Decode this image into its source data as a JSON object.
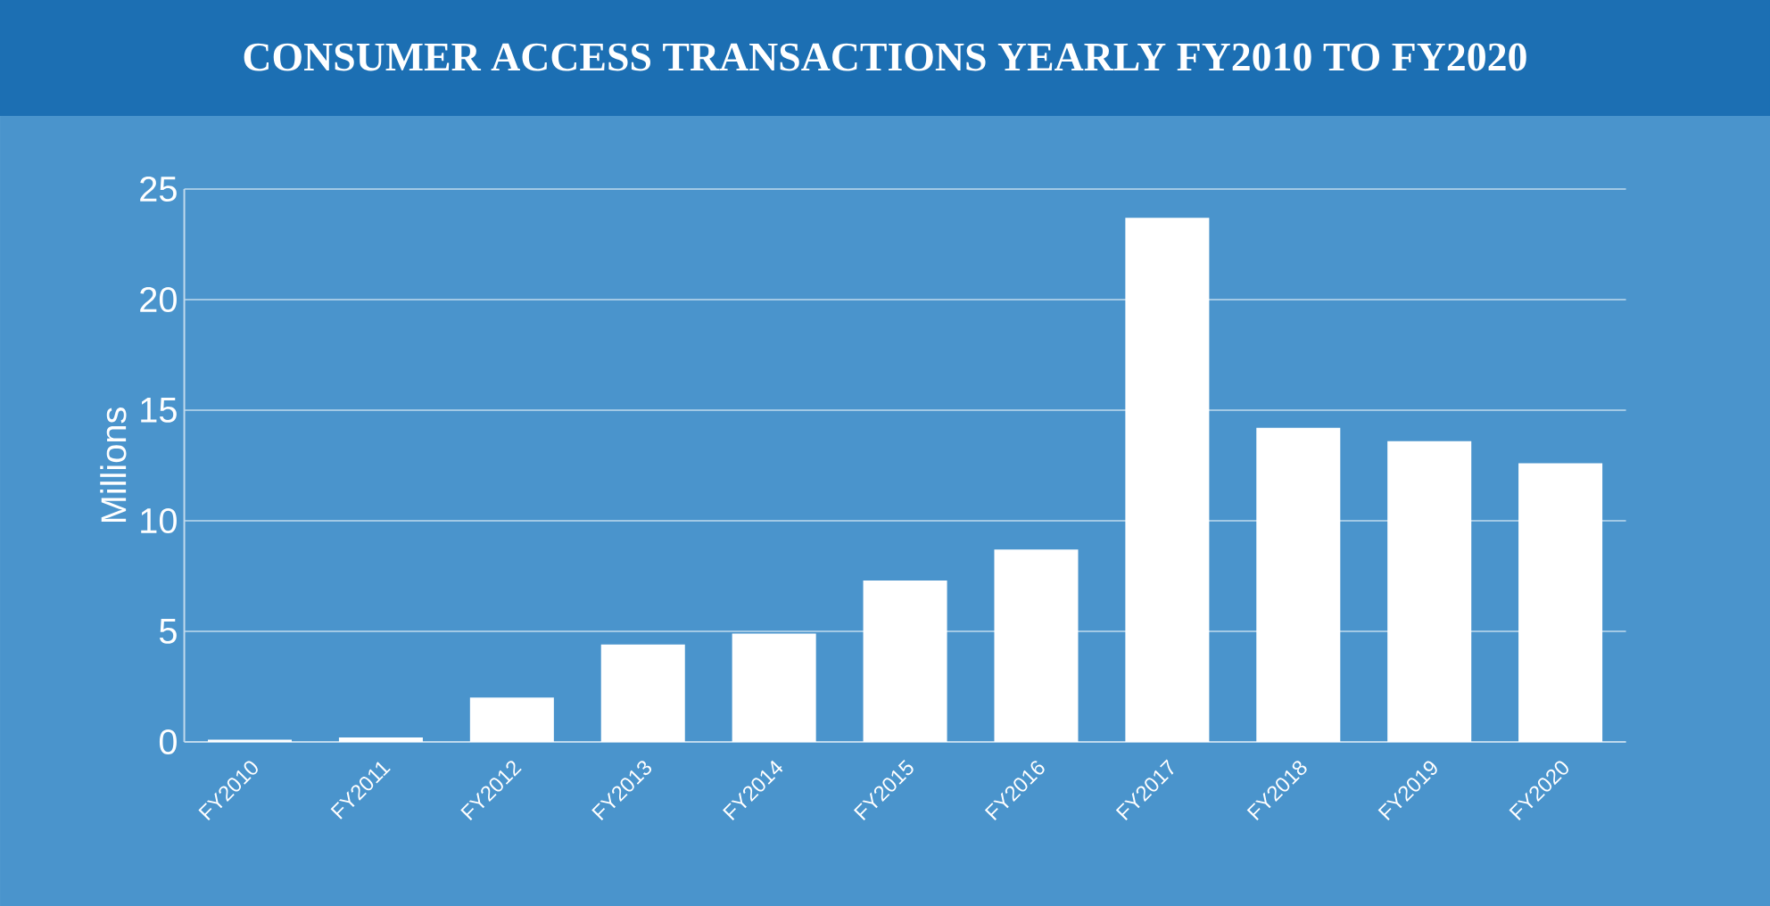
{
  "chart_data": {
    "type": "bar",
    "title": "CONSUMER ACCESS TRANSACTIONS YEARLY FY2010 TO FY2020",
    "ylabel": "Millions",
    "categories": [
      "FY2010",
      "FY2011",
      "FY2012",
      "FY2013",
      "FY2014",
      "FY2015",
      "FY2016",
      "FY2017",
      "FY2018",
      "FY2019",
      "FY2020"
    ],
    "values": [
      0.1,
      0.2,
      2.0,
      4.4,
      4.9,
      7.3,
      8.7,
      23.7,
      14.2,
      13.6,
      12.6
    ],
    "color": "#ffffff",
    "ylim": [
      0,
      25
    ],
    "yticks": [
      0,
      5,
      10,
      15,
      20,
      25
    ],
    "grid": "y"
  }
}
